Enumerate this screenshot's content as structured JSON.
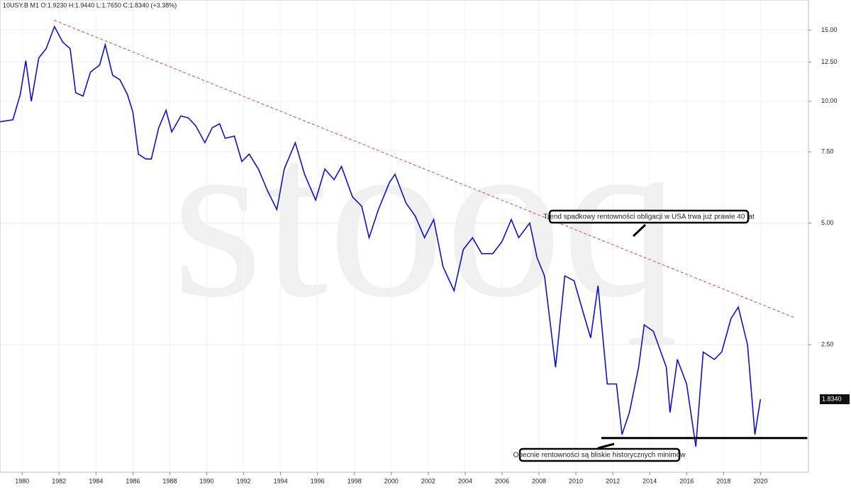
{
  "chart_data": {
    "type": "line",
    "title": "10USY.B  M1  O:1.9230  H:1.9440  L:1.7650  C:1.8340  (+3.38%)",
    "watermark": "stooq",
    "color": "#1010c8",
    "log_scale": true,
    "grid": true,
    "x": [
      1978.8,
      1979.5,
      1979.9,
      1980.2,
      1980.5,
      1980.9,
      1981.3,
      1981.75,
      1982.2,
      1982.6,
      1982.9,
      1983.3,
      1983.7,
      1984.2,
      1984.5,
      1984.9,
      1985.3,
      1985.7,
      1986.0,
      1986.3,
      1986.7,
      1987.0,
      1987.4,
      1987.8,
      1988.1,
      1988.6,
      1989.0,
      1989.4,
      1989.9,
      1990.3,
      1990.7,
      1991.0,
      1991.5,
      1991.9,
      1992.3,
      1992.8,
      1993.3,
      1993.8,
      1994.2,
      1994.8,
      1995.3,
      1995.9,
      1996.4,
      1996.9,
      1997.3,
      1997.9,
      1998.4,
      1998.8,
      1999.3,
      1999.9,
      2000.2,
      2000.8,
      2001.3,
      2001.8,
      2002.3,
      2002.8,
      2003.4,
      2003.9,
      2004.4,
      2004.9,
      2005.5,
      2006.0,
      2006.5,
      2006.9,
      2007.5,
      2007.9,
      2008.3,
      2008.9,
      2009.4,
      2009.9,
      2010.4,
      2010.8,
      2011.2,
      2011.7,
      2012.2,
      2012.5,
      2012.9,
      2013.4,
      2013.7,
      2014.2,
      2014.9,
      2015.1,
      2015.5,
      2016.0,
      2016.5,
      2016.9,
      2017.5,
      2017.9,
      2018.4,
      2018.8,
      2019.3,
      2019.7,
      2020.0
    ],
    "values": [
      8.9,
      9.0,
      10.4,
      12.6,
      10.0,
      12.8,
      13.5,
      15.3,
      14.0,
      13.5,
      10.5,
      10.3,
      11.8,
      12.3,
      13.8,
      11.6,
      11.3,
      10.4,
      9.4,
      7.4,
      7.2,
      7.2,
      8.6,
      9.5,
      8.4,
      9.2,
      9.1,
      8.7,
      7.9,
      8.6,
      8.8,
      8.1,
      8.2,
      7.1,
      7.4,
      6.8,
      6.0,
      5.4,
      6.8,
      7.9,
      6.6,
      5.7,
      6.8,
      6.4,
      6.9,
      5.8,
      5.5,
      4.6,
      5.4,
      6.3,
      6.6,
      5.6,
      5.2,
      4.6,
      5.1,
      3.9,
      3.4,
      4.3,
      4.6,
      4.2,
      4.2,
      4.5,
      5.1,
      4.6,
      5.0,
      4.1,
      3.7,
      2.2,
      3.7,
      3.6,
      3.0,
      2.6,
      3.5,
      2.0,
      2.0,
      1.5,
      1.7,
      2.2,
      2.8,
      2.7,
      2.2,
      1.7,
      2.3,
      2.0,
      1.4,
      2.4,
      2.3,
      2.4,
      2.9,
      3.1,
      2.5,
      1.5,
      1.834
    ],
    "last_value": {
      "value": 1.834,
      "label": "1.8340"
    },
    "xlim": [
      1978.8,
      2022.6
    ],
    "xticks": [
      1980,
      1982,
      1984,
      1986,
      1988,
      1990,
      1992,
      1994,
      1996,
      1998,
      2000,
      2002,
      2004,
      2006,
      2008,
      2010,
      2012,
      2014,
      2016,
      2018,
      2020
    ],
    "ylim": [
      1.21,
      17.8
    ],
    "yticks": [
      {
        "value": 15,
        "label": "15.00"
      },
      {
        "value": 12.5,
        "label": "12.50"
      },
      {
        "value": 10,
        "label": "10.00"
      },
      {
        "value": 7.5,
        "label": "7.50"
      },
      {
        "value": 5,
        "label": "5.00"
      },
      {
        "value": 2.5,
        "label": "2.50"
      }
    ],
    "trendline": {
      "color": "#e04040",
      "x": [
        1981.73,
        2021.9
      ],
      "y": [
        15.86,
        2.91
      ]
    },
    "support": {
      "color": "#000000",
      "x": [
        2011.38,
        2022.54
      ],
      "y": [
        1.47,
        1.47
      ]
    },
    "annotations": [
      "Trend spadkowy rentowności obligacji w USA trwa już prawie 40 lat",
      "Obecnie rentowności są bliskie historycznych minimów"
    ]
  }
}
